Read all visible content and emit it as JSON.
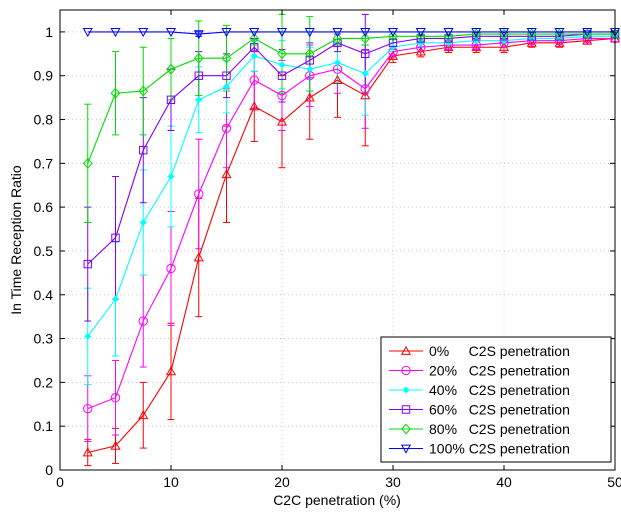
{
  "chart_data": {
    "type": "line",
    "title": "",
    "xlabel": "C2C penetration (%)",
    "ylabel": "In Time Reception Ratio",
    "xlim": [
      0,
      50
    ],
    "ylim": [
      0,
      1.05
    ],
    "xticks": [
      0,
      10,
      20,
      30,
      40,
      50
    ],
    "yticks": [
      0,
      0.1,
      0.2,
      0.3,
      0.4,
      0.5,
      0.6,
      0.7,
      0.8,
      0.9,
      1
    ],
    "grid": true,
    "legend_position": "bottom-right",
    "x": [
      2.5,
      5,
      7.5,
      10,
      12.5,
      15,
      17.5,
      20,
      22.5,
      25,
      27.5,
      30,
      32.5,
      35,
      37.5,
      40,
      42.5,
      45,
      47.5,
      50
    ],
    "series": [
      {
        "name": "0%     C2S penetration",
        "color": "#ff0000",
        "marker": "triangle-up",
        "values": [
          0.04,
          0.055,
          0.125,
          0.225,
          0.485,
          0.675,
          0.83,
          0.795,
          0.85,
          0.89,
          0.855,
          0.945,
          0.955,
          0.965,
          0.965,
          0.965,
          0.975,
          0.975,
          0.98,
          0.985
        ],
        "errors": [
          0.03,
          0.04,
          0.075,
          0.11,
          0.135,
          0.11,
          0.08,
          0.105,
          0.095,
          0.085,
          0.115,
          0.015,
          0.012,
          0.012,
          0.012,
          0.012,
          0.01,
          0.01,
          0.008,
          0.008
        ]
      },
      {
        "name": "20%   C2S penetration",
        "color": "#ff00ff",
        "marker": "circle",
        "values": [
          0.14,
          0.165,
          0.34,
          0.46,
          0.63,
          0.78,
          0.89,
          0.855,
          0.9,
          0.915,
          0.87,
          0.955,
          0.965,
          0.97,
          0.97,
          0.975,
          0.98,
          0.98,
          0.985,
          0.985
        ],
        "errors": [
          0.075,
          0.085,
          0.105,
          0.13,
          0.125,
          0.09,
          0.065,
          0.08,
          0.07,
          0.055,
          0.09,
          0.012,
          0.01,
          0.01,
          0.01,
          0.01,
          0.008,
          0.008,
          0.008,
          0.008
        ]
      },
      {
        "name": "40%   C2S penetration",
        "color": "#00ffff",
        "marker": "star",
        "values": [
          0.305,
          0.39,
          0.565,
          0.67,
          0.845,
          0.875,
          0.945,
          0.925,
          0.915,
          0.93,
          0.905,
          0.965,
          0.975,
          0.975,
          0.98,
          0.98,
          0.985,
          0.985,
          0.99,
          0.99
        ],
        "errors": [
          0.11,
          0.13,
          0.12,
          0.115,
          0.075,
          0.06,
          0.035,
          0.055,
          0.05,
          0.045,
          0.095,
          0.01,
          0.008,
          0.008,
          0.008,
          0.008,
          0.006,
          0.006,
          0.006,
          0.006
        ]
      },
      {
        "name": "60%   C2S penetration",
        "color": "#8000ff",
        "marker": "square",
        "values": [
          0.47,
          0.53,
          0.73,
          0.845,
          0.9,
          0.9,
          0.965,
          0.9,
          0.935,
          0.975,
          0.95,
          0.975,
          0.985,
          0.985,
          0.99,
          0.99,
          0.99,
          0.99,
          0.995,
          0.995
        ],
        "errors": [
          0.13,
          0.14,
          0.12,
          0.07,
          0.055,
          0.05,
          0.02,
          0.06,
          0.04,
          0.02,
          0.09,
          0.008,
          0.006,
          0.006,
          0.005,
          0.005,
          0.005,
          0.005,
          0.004,
          0.004
        ]
      },
      {
        "name": "80%   C2S penetration",
        "color": "#00dd00",
        "marker": "diamond",
        "values": [
          0.7,
          0.86,
          0.865,
          0.915,
          0.94,
          0.94,
          0.985,
          0.95,
          0.95,
          0.985,
          0.985,
          0.99,
          0.99,
          0.99,
          0.995,
          0.995,
          0.995,
          0.995,
          0.995,
          0.995
        ],
        "errors": [
          0.135,
          0.095,
          0.1,
          0.07,
          0.085,
          0.075,
          0.015,
          0.09,
          0.085,
          0.015,
          0.015,
          0.005,
          0.005,
          0.005,
          0.004,
          0.004,
          0.004,
          0.004,
          0.004,
          0.004
        ]
      },
      {
        "name": "100% C2S penetration",
        "color": "#0000ff",
        "marker": "triangle-down",
        "values": [
          1,
          1,
          1,
          1,
          0.995,
          1,
          1,
          1,
          1,
          1,
          1,
          1,
          1,
          1,
          1,
          1,
          1,
          1,
          1,
          1
        ],
        "errors": [
          0,
          0,
          0,
          0,
          0.005,
          0,
          0,
          0,
          0,
          0,
          0,
          0,
          0,
          0,
          0,
          0,
          0,
          0,
          0,
          0
        ]
      }
    ]
  }
}
